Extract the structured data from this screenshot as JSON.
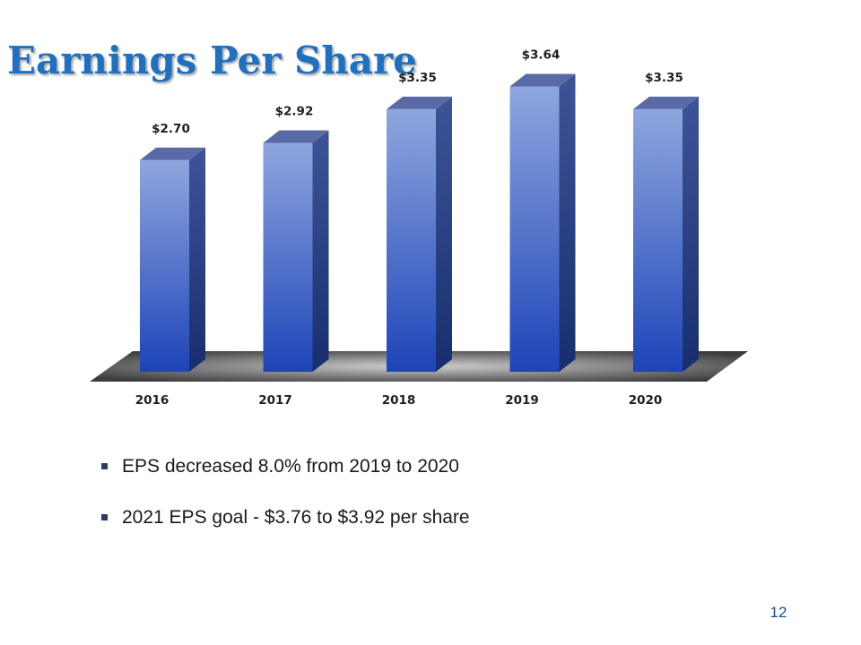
{
  "slide": {
    "title": "Earnings Per Share",
    "page_number": "12"
  },
  "chart_data": {
    "type": "bar",
    "style": "3d-column",
    "title": "",
    "xlabel": "",
    "ylabel": "",
    "categories": [
      "2016",
      "2017",
      "2018",
      "2019",
      "2020"
    ],
    "values": [
      2.7,
      2.92,
      3.35,
      3.64,
      3.35
    ],
    "data_labels": [
      "$2.70",
      "$2.92",
      "$3.35",
      "$3.64",
      "$3.35"
    ],
    "grid": false,
    "legend": "none",
    "colors": {
      "bar_top": "#8fa6de",
      "bar_bottom": "#1d44b8",
      "bar_side_dark": "#172e6e",
      "bar_cap": "#5a6aa6",
      "floor_light": "#cfcfcf",
      "floor_dark": "#3c3c3c"
    }
  },
  "bullets": [
    "EPS decreased 8.0% from 2019 to 2020",
    "2021 EPS goal - $3.76 to $3.92 per share"
  ],
  "colors": {
    "title": "#1e70c1",
    "body_text": "#1a1a1a",
    "bullet_marker": "#2b3a67"
  }
}
